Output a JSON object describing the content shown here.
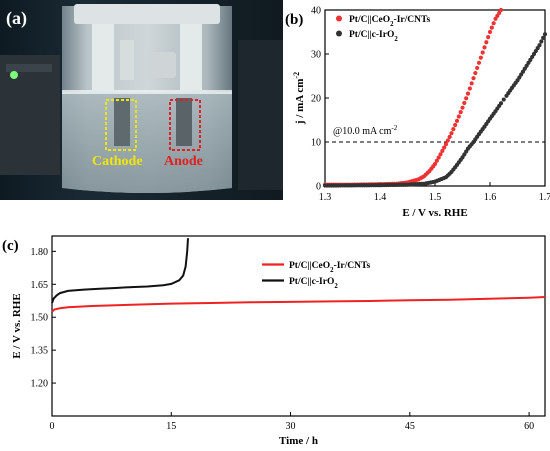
{
  "panels": {
    "a": {
      "label": "(a)",
      "cathode_label": "Cathode",
      "anode_label": "Anode",
      "colors": {
        "cathode": "#f4e600",
        "anode": "#e02020"
      }
    },
    "b": {
      "label": "(b)"
    },
    "c": {
      "label": "(c)"
    }
  },
  "chart_data": [
    {
      "panel": "b",
      "type": "scatter",
      "title": "",
      "xlabel": "E / V vs. RHE",
      "ylabel": "j / mA cm",
      "ylabel_sup": "-2",
      "xlim": [
        1.3,
        1.7
      ],
      "ylim": [
        0,
        40
      ],
      "xticks": [
        1.3,
        1.4,
        1.5,
        1.6,
        1.7
      ],
      "yticks": [
        0,
        10,
        20,
        30,
        40
      ],
      "legend_position": "top-left",
      "annotation": {
        "text": "@10.0 mA cm",
        "sup": "-2",
        "y": 10,
        "style": "dashed"
      },
      "series": [
        {
          "name": "Pt/C||CeO2-Ir/CNTs",
          "name_parts": [
            "Pt/C||CeO",
            "2",
            "-Ir/CNTs"
          ],
          "color": "#ee3333",
          "x": [
            1.3,
            1.35,
            1.4,
            1.43,
            1.45,
            1.47,
            1.48,
            1.49,
            1.5,
            1.51,
            1.52,
            1.53,
            1.54,
            1.55,
            1.56,
            1.57,
            1.58,
            1.59,
            1.6,
            1.61,
            1.62
          ],
          "y": [
            0.3,
            0.3,
            0.4,
            0.5,
            0.8,
            1.5,
            2.2,
            3.4,
            5.0,
            7.2,
            9.5,
            12.0,
            14.8,
            17.8,
            21.0,
            24.5,
            28.0,
            31.5,
            35.0,
            38.0,
            40.0
          ]
        },
        {
          "name": "Pt/C||c-IrO2",
          "name_parts": [
            "Pt/C||c-IrO",
            "2",
            ""
          ],
          "color": "#333333",
          "x": [
            1.3,
            1.4,
            1.45,
            1.48,
            1.5,
            1.52,
            1.53,
            1.54,
            1.55,
            1.56,
            1.57,
            1.58,
            1.59,
            1.6,
            1.61,
            1.62,
            1.63,
            1.64,
            1.65,
            1.66,
            1.67,
            1.68,
            1.69,
            1.7
          ],
          "y": [
            0.1,
            0.2,
            0.3,
            0.5,
            1.0,
            2.0,
            3.2,
            4.8,
            6.5,
            8.5,
            10.0,
            11.8,
            13.5,
            15.3,
            17.0,
            18.8,
            20.5,
            22.3,
            24.0,
            26.0,
            28.0,
            30.0,
            32.0,
            34.5
          ]
        }
      ]
    },
    {
      "panel": "c",
      "type": "line",
      "title": "",
      "xlabel": "Time / h",
      "ylabel": "E / V vs. RHE",
      "xlim": [
        0,
        62
      ],
      "ylim": [
        1.05,
        1.87
      ],
      "xticks": [
        0,
        15,
        30,
        45,
        60
      ],
      "yticks": [
        1.2,
        1.35,
        1.5,
        1.65,
        1.8
      ],
      "ytick_labels": [
        "1.20",
        "1.35",
        "1.50",
        "1.65",
        "1.80"
      ],
      "legend_position": "top-center",
      "series": [
        {
          "name": "Pt/C||CeO2-Ir/CNTs",
          "name_parts": [
            "Pt/C||CeO",
            "2",
            "-Ir/CNTs"
          ],
          "color": "#ee2222",
          "x": [
            0,
            0.3,
            1,
            2,
            5,
            10,
            15,
            20,
            25,
            30,
            35,
            40,
            45,
            50,
            55,
            60,
            62
          ],
          "y": [
            1.525,
            1.535,
            1.541,
            1.545,
            1.551,
            1.557,
            1.562,
            1.565,
            1.568,
            1.57,
            1.572,
            1.574,
            1.577,
            1.58,
            1.584,
            1.589,
            1.592
          ]
        },
        {
          "name": "Pt/C||c-IrO2",
          "name_parts": [
            "Pt/C||c-IrO",
            "2",
            ""
          ],
          "color": "#111111",
          "x": [
            0,
            0.2,
            0.6,
            1,
            2,
            4,
            6,
            8,
            10,
            12,
            14,
            15,
            16,
            16.5,
            16.8,
            17.0,
            17.1
          ],
          "y": [
            1.565,
            1.585,
            1.6,
            1.61,
            1.62,
            1.626,
            1.63,
            1.633,
            1.637,
            1.64,
            1.646,
            1.652,
            1.668,
            1.69,
            1.73,
            1.8,
            1.86
          ]
        }
      ]
    }
  ]
}
